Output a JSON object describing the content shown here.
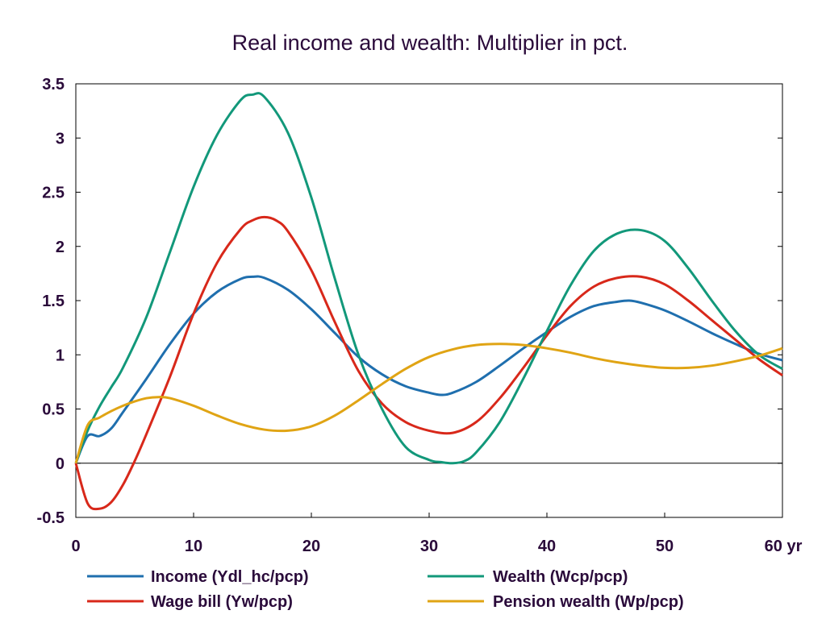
{
  "chart_data": {
    "type": "line",
    "title": "Real income and wealth: Multiplier in pct.",
    "x_unit_label": "yr",
    "xlim": [
      0,
      60
    ],
    "ylim": [
      -0.5,
      3.5
    ],
    "x_ticks": [
      0,
      10,
      20,
      30,
      40,
      50,
      60
    ],
    "x_tick_labels": [
      "0",
      "10",
      "20",
      "30",
      "40",
      "50",
      "60 yr"
    ],
    "y_ticks": [
      -0.5,
      0,
      0.5,
      1,
      1.5,
      2,
      2.5,
      3,
      3.5
    ],
    "y_tick_labels": [
      "-0.5",
      "0",
      "0.5",
      "1",
      "1.5",
      "2",
      "2.5",
      "3",
      "3.5"
    ],
    "zero_line": true,
    "grid": false,
    "legend_position": "bottom",
    "series": [
      {
        "name": "Income (Ydl_hc/pcp)",
        "color": "#1f6fae",
        "x": [
          0,
          1,
          2,
          3,
          4,
          6,
          8,
          10,
          12,
          14,
          15,
          16,
          18,
          20,
          22,
          24,
          26,
          28,
          30,
          31,
          32,
          34,
          36,
          38,
          40,
          42,
          44,
          46,
          47,
          48,
          50,
          52,
          54,
          56,
          58,
          60
        ],
        "y": [
          0,
          0.25,
          0.25,
          0.32,
          0.47,
          0.78,
          1.1,
          1.38,
          1.58,
          1.7,
          1.72,
          1.71,
          1.6,
          1.42,
          1.2,
          0.98,
          0.82,
          0.71,
          0.65,
          0.63,
          0.65,
          0.75,
          0.9,
          1.06,
          1.21,
          1.35,
          1.45,
          1.49,
          1.5,
          1.48,
          1.41,
          1.31,
          1.2,
          1.1,
          1.01,
          0.95
        ]
      },
      {
        "name": "Wage bill (Yw/pcp)",
        "color": "#d8281a",
        "x": [
          0,
          1,
          2,
          3,
          4,
          5,
          6,
          8,
          10,
          12,
          14,
          15,
          16,
          17,
          18,
          20,
          22,
          24,
          26,
          28,
          30,
          32,
          34,
          36,
          38,
          40,
          42,
          44,
          46,
          48,
          50,
          52,
          54,
          56,
          58,
          60
        ],
        "y": [
          0,
          -0.37,
          -0.42,
          -0.36,
          -0.2,
          0.02,
          0.27,
          0.8,
          1.38,
          1.85,
          2.16,
          2.24,
          2.27,
          2.24,
          2.14,
          1.78,
          1.3,
          0.85,
          0.55,
          0.38,
          0.3,
          0.28,
          0.38,
          0.6,
          0.88,
          1.18,
          1.45,
          1.63,
          1.71,
          1.72,
          1.65,
          1.5,
          1.32,
          1.14,
          0.96,
          0.81
        ]
      },
      {
        "name": "Wealth (Wcp/pcp)",
        "color": "#12987a",
        "x": [
          0,
          1,
          2,
          3,
          4,
          6,
          8,
          10,
          12,
          14,
          15,
          16,
          18,
          20,
          22,
          24,
          26,
          28,
          30,
          31,
          32,
          33,
          34,
          36,
          38,
          40,
          42,
          44,
          46,
          48,
          50,
          52,
          54,
          56,
          58,
          60
        ],
        "y": [
          0,
          0.3,
          0.52,
          0.7,
          0.88,
          1.35,
          1.95,
          2.55,
          3.03,
          3.35,
          3.4,
          3.38,
          3.05,
          2.45,
          1.7,
          1.0,
          0.5,
          0.15,
          0.03,
          0.01,
          0.0,
          0.02,
          0.1,
          0.38,
          0.78,
          1.22,
          1.64,
          1.96,
          2.12,
          2.15,
          2.05,
          1.8,
          1.5,
          1.22,
          1.0,
          0.87
        ]
      },
      {
        "name": "Pension wealth (Wp/pcp)",
        "color": "#e0a414",
        "x": [
          0,
          1,
          2,
          3,
          4,
          5,
          6,
          7,
          8,
          10,
          12,
          14,
          16,
          18,
          20,
          22,
          24,
          26,
          28,
          30,
          32,
          34,
          36,
          38,
          40,
          42,
          44,
          46,
          48,
          50,
          52,
          54,
          56,
          58,
          60
        ],
        "y": [
          0,
          0.35,
          0.42,
          0.48,
          0.53,
          0.57,
          0.6,
          0.61,
          0.6,
          0.53,
          0.44,
          0.36,
          0.31,
          0.3,
          0.34,
          0.44,
          0.58,
          0.73,
          0.87,
          0.98,
          1.05,
          1.09,
          1.1,
          1.09,
          1.06,
          1.02,
          0.97,
          0.93,
          0.9,
          0.88,
          0.88,
          0.9,
          0.94,
          0.99,
          1.06
        ]
      }
    ]
  }
}
